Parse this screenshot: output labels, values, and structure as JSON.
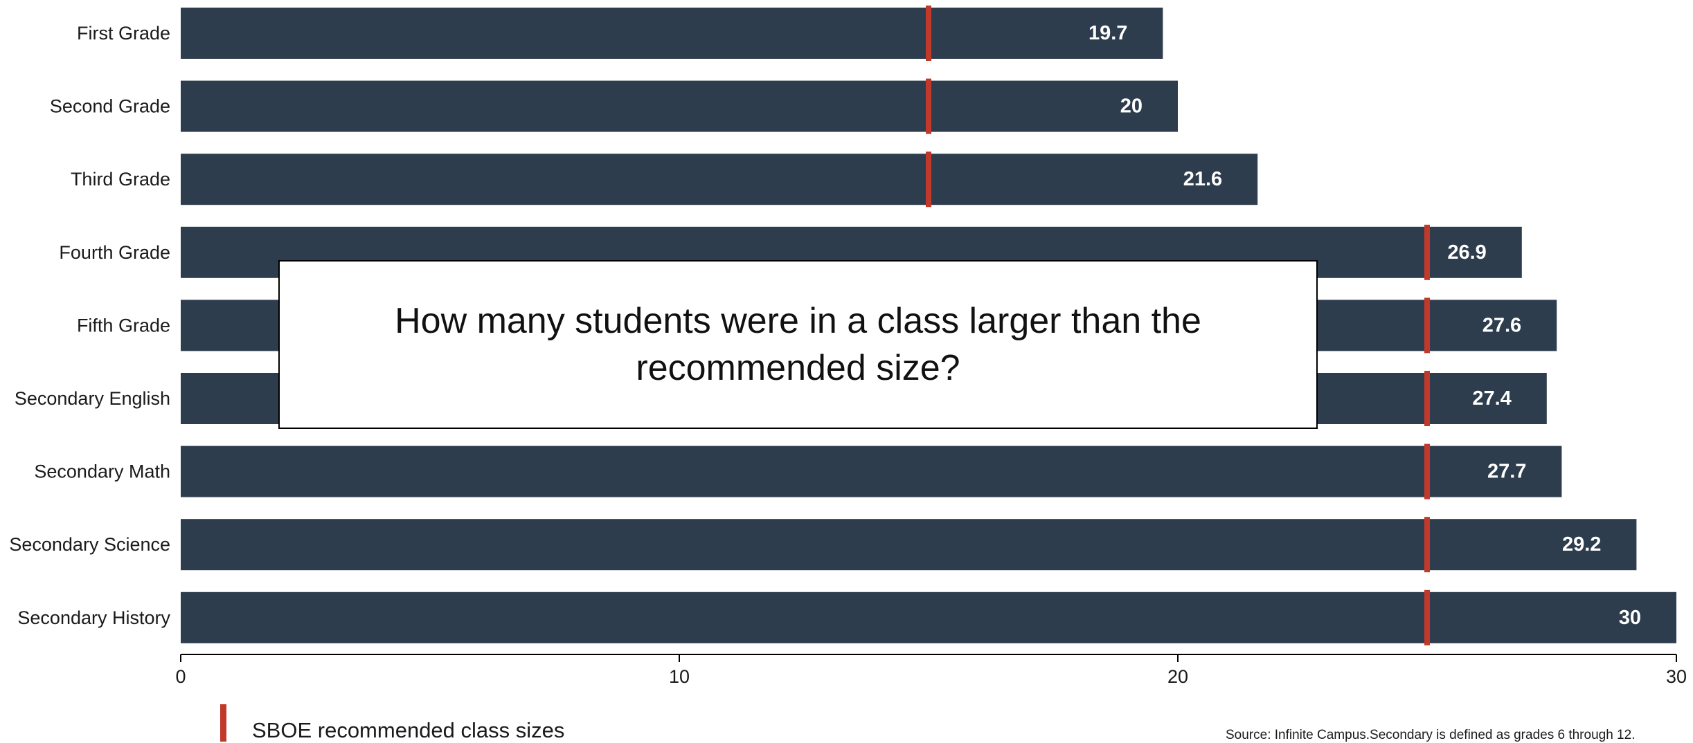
{
  "colors": {
    "bar": "#2e3d4d",
    "marker": "#c0392b",
    "value_text": "#ffffff",
    "axis": "#000000"
  },
  "chart_data": {
    "type": "bar",
    "orientation": "horizontal",
    "categories": [
      "First Grade",
      "Second Grade",
      "Third Grade",
      "Fourth Grade",
      "Fifth Grade",
      "Secondary English",
      "Secondary Math",
      "Secondary Science",
      "Secondary History"
    ],
    "values": [
      19.7,
      20,
      21.6,
      26.9,
      27.6,
      27.4,
      27.7,
      29.2,
      30
    ],
    "value_labels": [
      "19.7",
      "20",
      "21.6",
      "26.9",
      "27.6",
      "27.4",
      "27.7",
      "29.2",
      "30"
    ],
    "recommended": [
      15,
      15,
      15,
      25,
      25,
      25,
      25,
      25,
      25
    ],
    "xlim": [
      0,
      30
    ],
    "xticks": [
      0,
      10,
      20,
      30
    ],
    "xtick_labels": [
      "0",
      "10",
      "20",
      "30"
    ],
    "grid": false,
    "legend": {
      "position": "bottom-left",
      "entries": [
        {
          "label": "SBOE recommended class sizes",
          "marker": "vertical-line"
        }
      ]
    }
  },
  "overlay": {
    "question": "How many students were in a class larger than the recommended size?"
  },
  "source_note": "Source: Infinite Campus.Secondary is defined as grades 6 through 12."
}
